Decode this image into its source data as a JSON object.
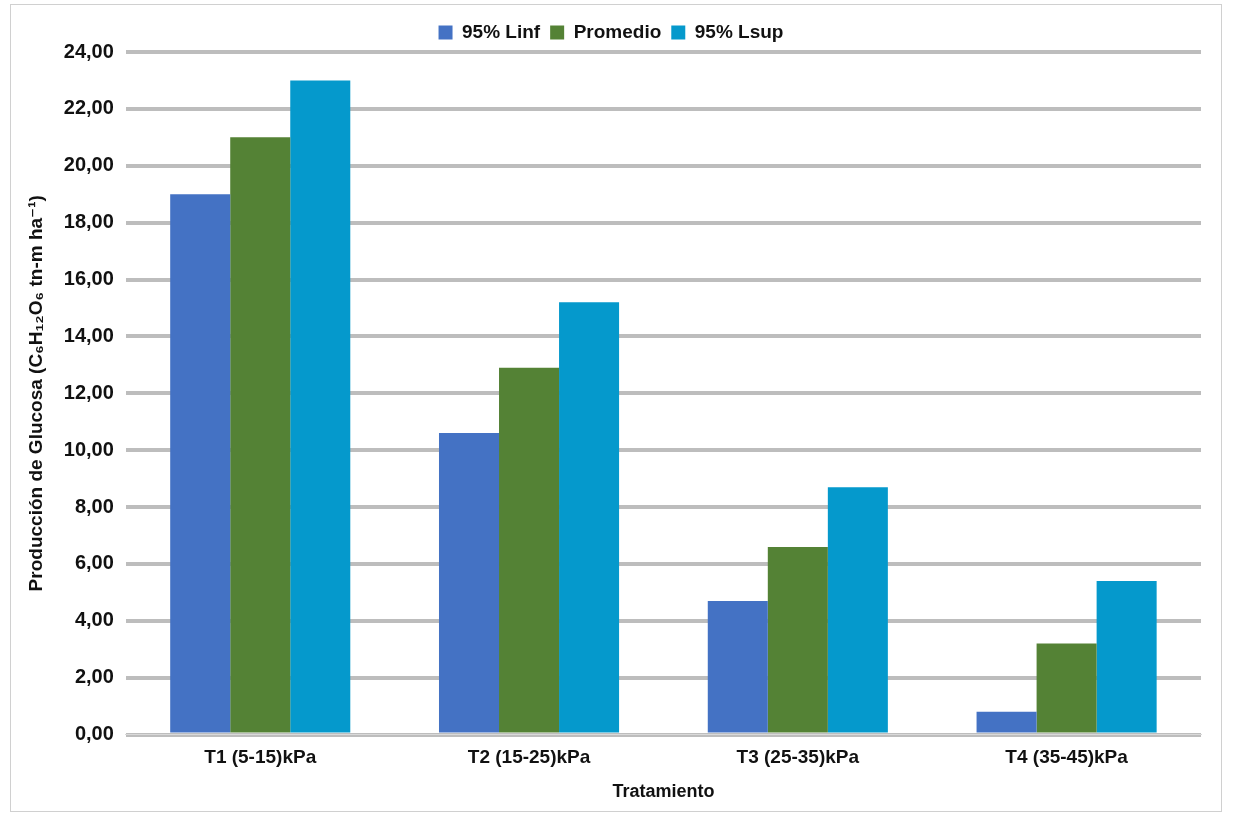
{
  "chart_data": {
    "type": "bar",
    "xlabel": "Tratamiento",
    "ylabel": "Producción de Glucosa (C₆H₁₂O₆ tn-m ha⁻¹)",
    "categories": [
      "T1 (5-15)kPa",
      "T2 (15-25)kPa",
      "T3 (25-35)kPa",
      "T4 (35-45)kPa"
    ],
    "series": [
      {
        "name": "95% Linf",
        "color": "#4472c4",
        "values": [
          19.0,
          10.6,
          4.7,
          0.8
        ]
      },
      {
        "name": "Promedio",
        "color": "#548235",
        "values": [
          21.0,
          12.9,
          6.6,
          3.2
        ]
      },
      {
        "name": "95% Lsup",
        "color": "#0599cc",
        "values": [
          23.0,
          15.2,
          8.7,
          5.4
        ]
      }
    ],
    "ylim": [
      0,
      24
    ],
    "yticks": [
      {
        "value": 0,
        "label": "0,00"
      },
      {
        "value": 2,
        "label": "2,00"
      },
      {
        "value": 4,
        "label": "4,00"
      },
      {
        "value": 6,
        "label": "6,00"
      },
      {
        "value": 8,
        "label": "8,00"
      },
      {
        "value": 10,
        "label": "10,00"
      },
      {
        "value": 12,
        "label": "12,00"
      },
      {
        "value": 14,
        "label": "14,00"
      },
      {
        "value": 16,
        "label": "16,00"
      },
      {
        "value": 18,
        "label": "18,00"
      },
      {
        "value": 20,
        "label": "20,00"
      },
      {
        "value": 22,
        "label": "22,00"
      },
      {
        "value": 24,
        "label": "24,00"
      }
    ],
    "grid": "y",
    "legend": "top"
  }
}
